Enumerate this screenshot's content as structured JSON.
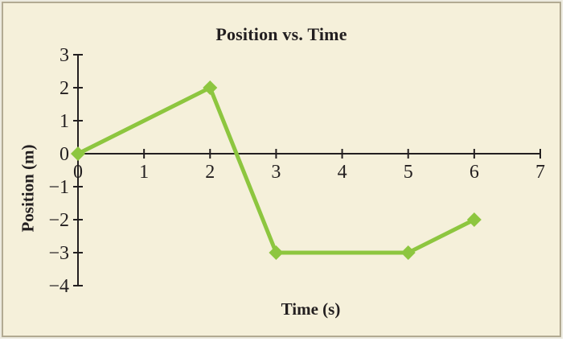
{
  "chart": {
    "title": "Position vs. Time",
    "xlabel": "Time (s)",
    "ylabel": "Position (m)"
  },
  "chart_data": {
    "type": "line",
    "title": "Position vs. Time",
    "xlabel": "Time (s)",
    "ylabel": "Position (m)",
    "series": [
      {
        "name": "position",
        "x": [
          0,
          2,
          3,
          5,
          6
        ],
        "y": [
          0,
          2,
          -3,
          -3,
          -2
        ]
      }
    ],
    "x_ticks": [
      0,
      1,
      2,
      3,
      4,
      5,
      6,
      7
    ],
    "y_ticks": [
      3,
      2,
      1,
      0,
      -1,
      -2,
      -3,
      -4
    ],
    "xlim": [
      0,
      7
    ],
    "ylim": [
      -4,
      3
    ],
    "grid": false,
    "legend": false,
    "marker": "diamond",
    "colors": {
      "line": "#8dc63f",
      "axis": "#231f20",
      "text": "#231f20",
      "background": "#f5f0da",
      "border": "#b2aa92"
    }
  }
}
